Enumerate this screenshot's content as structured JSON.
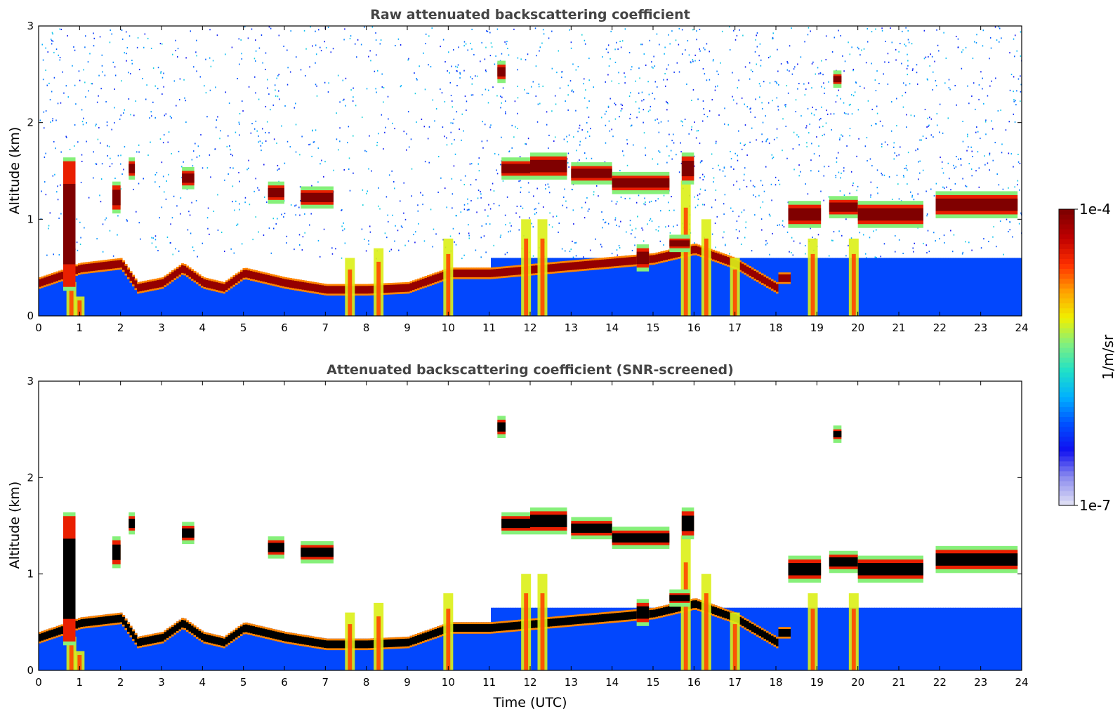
{
  "chart_data": [
    {
      "type": "heatmap",
      "title": "Raw attenuated backscattering coefficient",
      "xlabel": "",
      "ylabel": "Altitude (km)",
      "xlim": [
        0,
        24
      ],
      "ylim": [
        0,
        3
      ],
      "x_ticks": [
        "0",
        "1",
        "2",
        "3",
        "4",
        "5",
        "6",
        "7",
        "8",
        "9",
        "10",
        "11",
        "12",
        "13",
        "14",
        "15",
        "16",
        "17",
        "18",
        "19",
        "20",
        "21",
        "22",
        "23",
        "24"
      ],
      "y_ticks": [
        "0",
        "1",
        "2",
        "3"
      ],
      "screening": "raw",
      "boundary_layer_top_km": [
        [
          0,
          0.35
        ],
        [
          0.7,
          0.45
        ],
        [
          1,
          0.5
        ],
        [
          2,
          0.55
        ],
        [
          2.4,
          0.3
        ],
        [
          3,
          0.35
        ],
        [
          3.5,
          0.5
        ],
        [
          4,
          0.35
        ],
        [
          4.5,
          0.3
        ],
        [
          5,
          0.45
        ],
        [
          5.5,
          0.4
        ],
        [
          6,
          0.35
        ],
        [
          7,
          0.28
        ],
        [
          8,
          0.28
        ],
        [
          9,
          0.3
        ],
        [
          10,
          0.45
        ],
        [
          11,
          0.45
        ],
        [
          15,
          0.6
        ],
        [
          16,
          0.7
        ],
        [
          17,
          0.55
        ],
        [
          18,
          0.3
        ]
      ],
      "cloud_layers": [
        {
          "x0": 0.6,
          "x1": 0.9,
          "y0": 0.3,
          "y1": 1.6
        },
        {
          "x0": 1.8,
          "x1": 2.0,
          "y0": 1.1,
          "y1": 1.35
        },
        {
          "x0": 2.2,
          "x1": 2.35,
          "y0": 1.45,
          "y1": 1.6
        },
        {
          "x0": 3.5,
          "x1": 3.8,
          "y0": 1.35,
          "y1": 1.5
        },
        {
          "x0": 5.6,
          "x1": 6.0,
          "y0": 1.2,
          "y1": 1.35
        },
        {
          "x0": 6.4,
          "x1": 7.2,
          "y0": 1.15,
          "y1": 1.3
        },
        {
          "x0": 11.3,
          "x1": 12.0,
          "y0": 1.45,
          "y1": 1.6
        },
        {
          "x0": 12.0,
          "x1": 12.9,
          "y0": 1.45,
          "y1": 1.65
        },
        {
          "x0": 13.0,
          "x1": 14.0,
          "y0": 1.4,
          "y1": 1.55
        },
        {
          "x0": 14.0,
          "x1": 15.4,
          "y0": 1.3,
          "y1": 1.45
        },
        {
          "x0": 14.6,
          "x1": 14.9,
          "y0": 0.5,
          "y1": 0.7
        },
        {
          "x0": 15.4,
          "x1": 15.9,
          "y0": 0.7,
          "y1": 0.8
        },
        {
          "x0": 15.7,
          "x1": 16.0,
          "y0": 1.4,
          "y1": 1.65
        },
        {
          "x0": 18.3,
          "x1": 19.1,
          "y0": 0.95,
          "y1": 1.15
        },
        {
          "x0": 19.3,
          "x1": 20.0,
          "y0": 1.05,
          "y1": 1.2
        },
        {
          "x0": 20.0,
          "x1": 21.6,
          "y0": 0.95,
          "y1": 1.15
        },
        {
          "x0": 21.9,
          "x1": 23.9,
          "y0": 1.05,
          "y1": 1.25
        },
        {
          "x0": 11.2,
          "x1": 11.4,
          "y0": 2.45,
          "y1": 2.6
        },
        {
          "x0": 19.4,
          "x1": 19.6,
          "y0": 2.4,
          "y1": 2.5
        }
      ],
      "precip_columns": [
        [
          0.8,
          0.35
        ],
        [
          1.0,
          0.2
        ],
        [
          7.6,
          0.6
        ],
        [
          8.3,
          0.7
        ],
        [
          10.0,
          0.8
        ],
        [
          11.9,
          1.0
        ],
        [
          12.3,
          1.0
        ],
        [
          15.8,
          1.4
        ],
        [
          16.3,
          1.0
        ],
        [
          17.0,
          0.6
        ],
        [
          18.9,
          0.8
        ],
        [
          19.9,
          0.8
        ]
      ],
      "noise_density": "high"
    },
    {
      "type": "heatmap",
      "title": "Attenuated backscattering coefficient (SNR-screened)",
      "xlabel": "Time (UTC)",
      "ylabel": "Altitude (km)",
      "xlim": [
        0,
        24
      ],
      "ylim": [
        0,
        3
      ],
      "x_ticks": [
        "0",
        "1",
        "2",
        "3",
        "4",
        "5",
        "6",
        "7",
        "8",
        "9",
        "10",
        "11",
        "12",
        "13",
        "14",
        "15",
        "16",
        "17",
        "18",
        "19",
        "20",
        "21",
        "22",
        "23",
        "24"
      ],
      "y_ticks": [
        "0",
        "1",
        "2",
        "3"
      ],
      "screening": "snr",
      "saturated_color": "#000000",
      "noise_density": "none"
    }
  ],
  "colorbar": {
    "label": "1/m/sr",
    "max_label": "1e-4",
    "min_label": "1e-7",
    "scale": "log",
    "range": [
      1e-07,
      0.0001
    ],
    "colormap_stops": [
      "#dcdcf4",
      "#8a8aee",
      "#1010f0",
      "#0050ff",
      "#00b0ff",
      "#20e0c8",
      "#80f080",
      "#f0f000",
      "#ffa000",
      "#ff3000",
      "#c00000",
      "#800000"
    ]
  }
}
